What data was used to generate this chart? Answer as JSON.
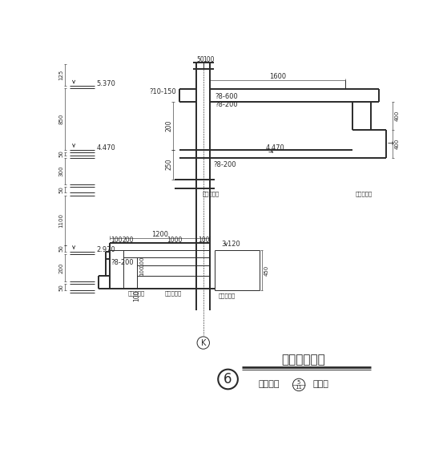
{
  "background_color": "#ffffff",
  "line_color": "#2a2a2a",
  "title": "入口门厅大样",
  "sub1": "对应建施",
  "sub2": "号节点",
  "circle6": "6",
  "circleK": "K",
  "ref": "5/11"
}
